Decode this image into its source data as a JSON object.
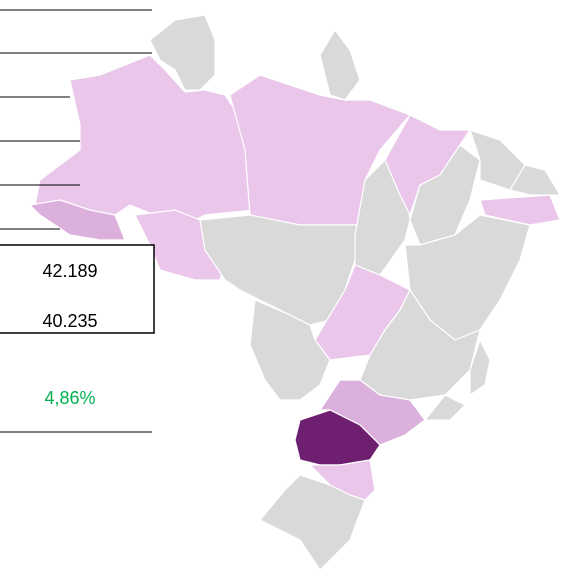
{
  "table": {
    "rows": [
      [
        "42.189"
      ],
      [
        "40.235"
      ],
      [
        "4,86%"
      ]
    ]
  }
}
